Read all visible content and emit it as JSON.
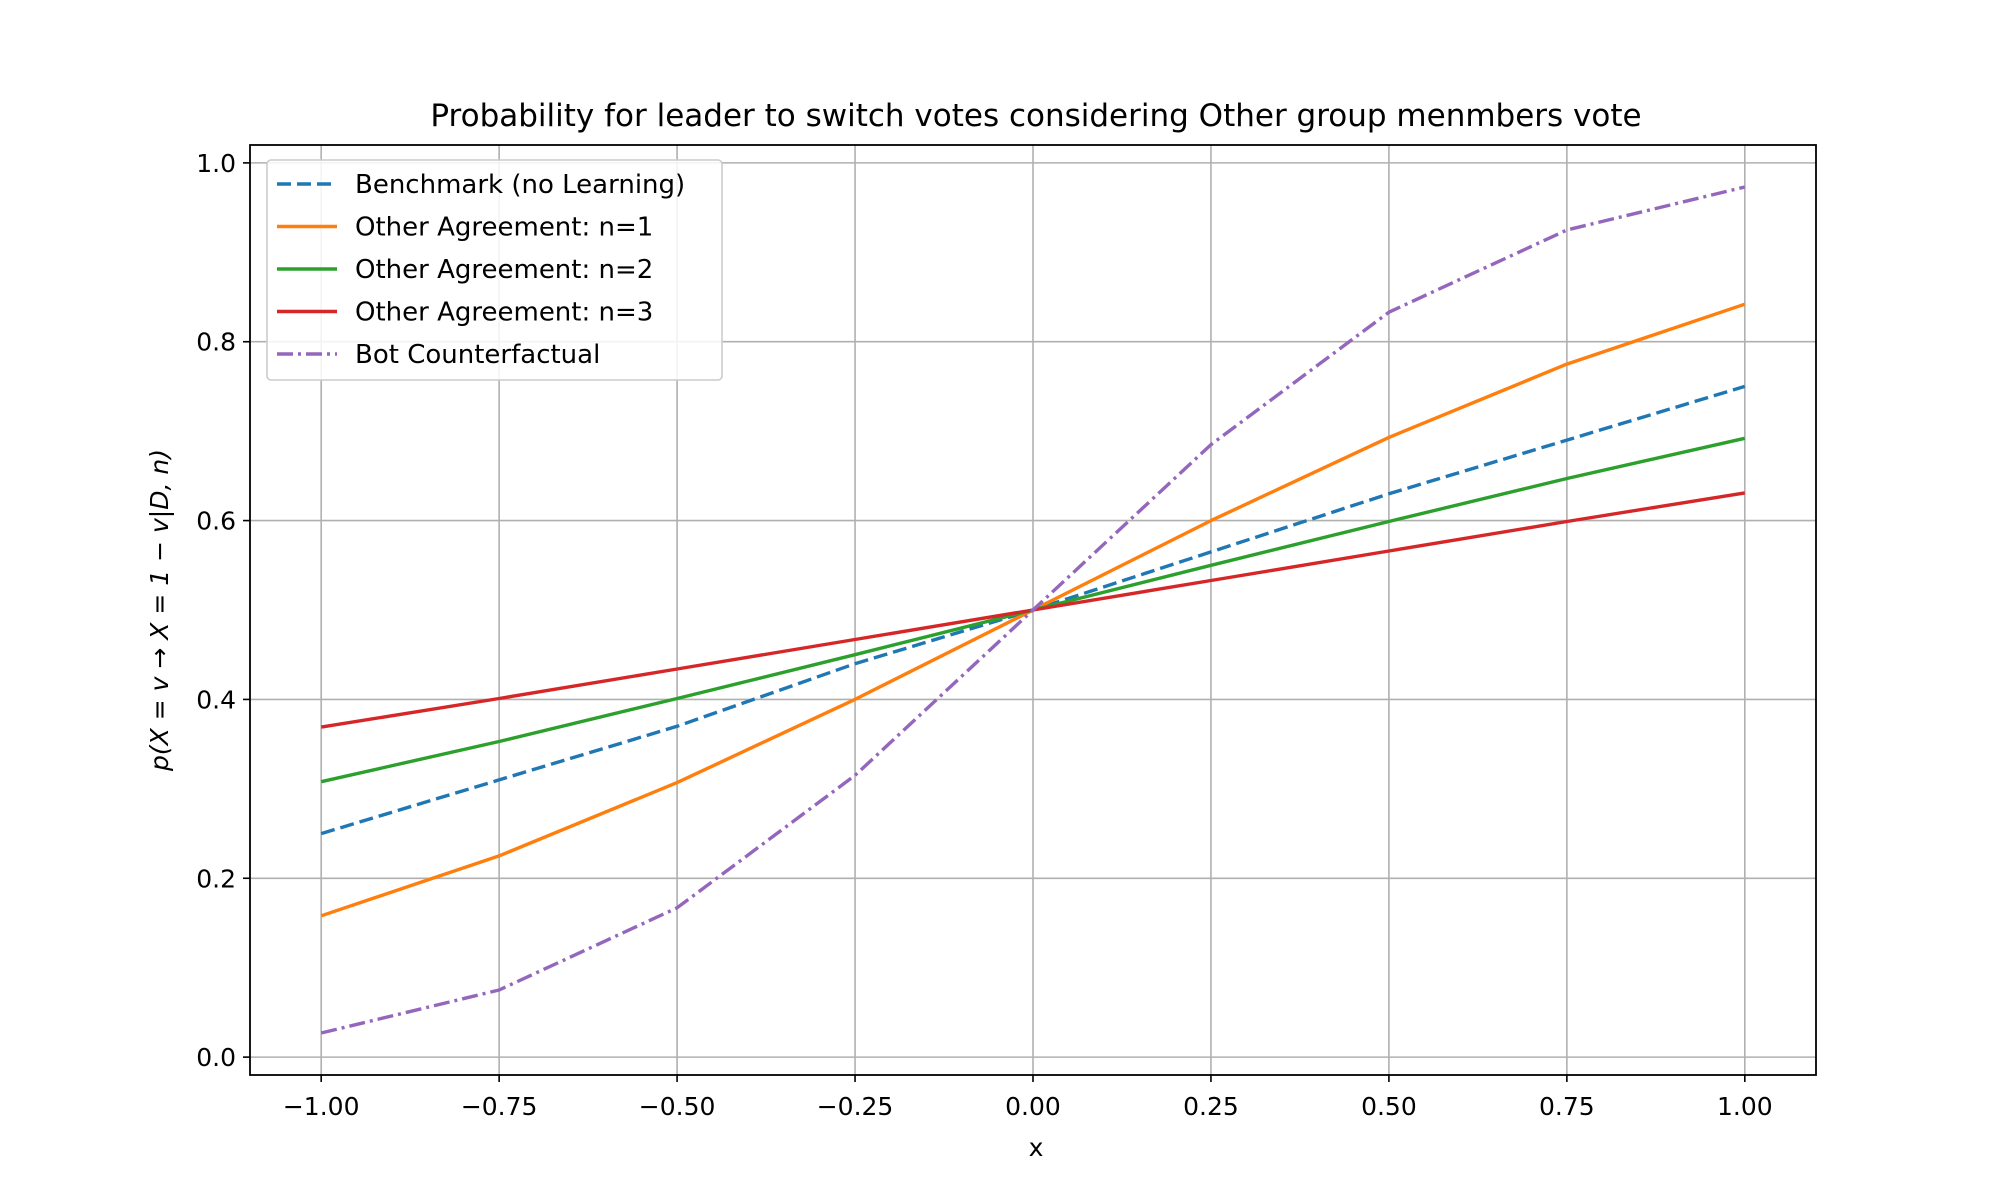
{
  "chart_data": {
    "type": "line",
    "title": "Probability for leader to switch votes considering Other group menmbers vote",
    "xlabel": "x",
    "ylabel": "p(X = v → X = 1 − v|D, n)",
    "xlim": [
      -1.1,
      1.1
    ],
    "ylim": [
      -0.02,
      1.02
    ],
    "x_ticks": [
      -1.0,
      -0.75,
      -0.5,
      -0.25,
      0.0,
      0.25,
      0.5,
      0.75,
      1.0
    ],
    "x_tick_labels": [
      "−1.00",
      "−0.75",
      "−0.50",
      "−0.25",
      "0.00",
      "0.25",
      "0.50",
      "0.75",
      "1.00"
    ],
    "y_ticks": [
      0.0,
      0.2,
      0.4,
      0.6,
      0.8,
      1.0
    ],
    "y_tick_labels": [
      "0.0",
      "0.2",
      "0.4",
      "0.6",
      "0.8",
      "1.0"
    ],
    "grid": true,
    "legend_position": "top-left",
    "x": [
      -1.0,
      -0.75,
      -0.5,
      -0.25,
      0.0,
      0.25,
      0.5,
      0.75,
      1.0
    ],
    "series": [
      {
        "name": "Benchmark (no Learning)",
        "color": "#1f77b4",
        "dash": "dashed",
        "values": [
          0.25,
          0.31,
          0.37,
          0.44,
          0.5,
          0.565,
          0.63,
          0.69,
          0.75
        ]
      },
      {
        "name": "Other Agreement: n=1",
        "color": "#ff7f0e",
        "dash": "solid",
        "values": [
          0.158,
          0.225,
          0.307,
          0.4,
          0.5,
          0.6,
          0.693,
          0.775,
          0.842
        ]
      },
      {
        "name": "Other Agreement: n=2",
        "color": "#2ca02c",
        "dash": "solid",
        "values": [
          0.308,
          0.353,
          0.401,
          0.45,
          0.5,
          0.55,
          0.599,
          0.647,
          0.692
        ]
      },
      {
        "name": "Other Agreement: n=3",
        "color": "#d62728",
        "dash": "solid",
        "values": [
          0.369,
          0.401,
          0.434,
          0.467,
          0.5,
          0.533,
          0.566,
          0.599,
          0.631
        ]
      },
      {
        "name": "Bot Counterfactual",
        "color": "#9467bd",
        "dash": "dashdot",
        "values": [
          0.027,
          0.075,
          0.167,
          0.315,
          0.5,
          0.685,
          0.833,
          0.925,
          0.973
        ]
      }
    ]
  }
}
